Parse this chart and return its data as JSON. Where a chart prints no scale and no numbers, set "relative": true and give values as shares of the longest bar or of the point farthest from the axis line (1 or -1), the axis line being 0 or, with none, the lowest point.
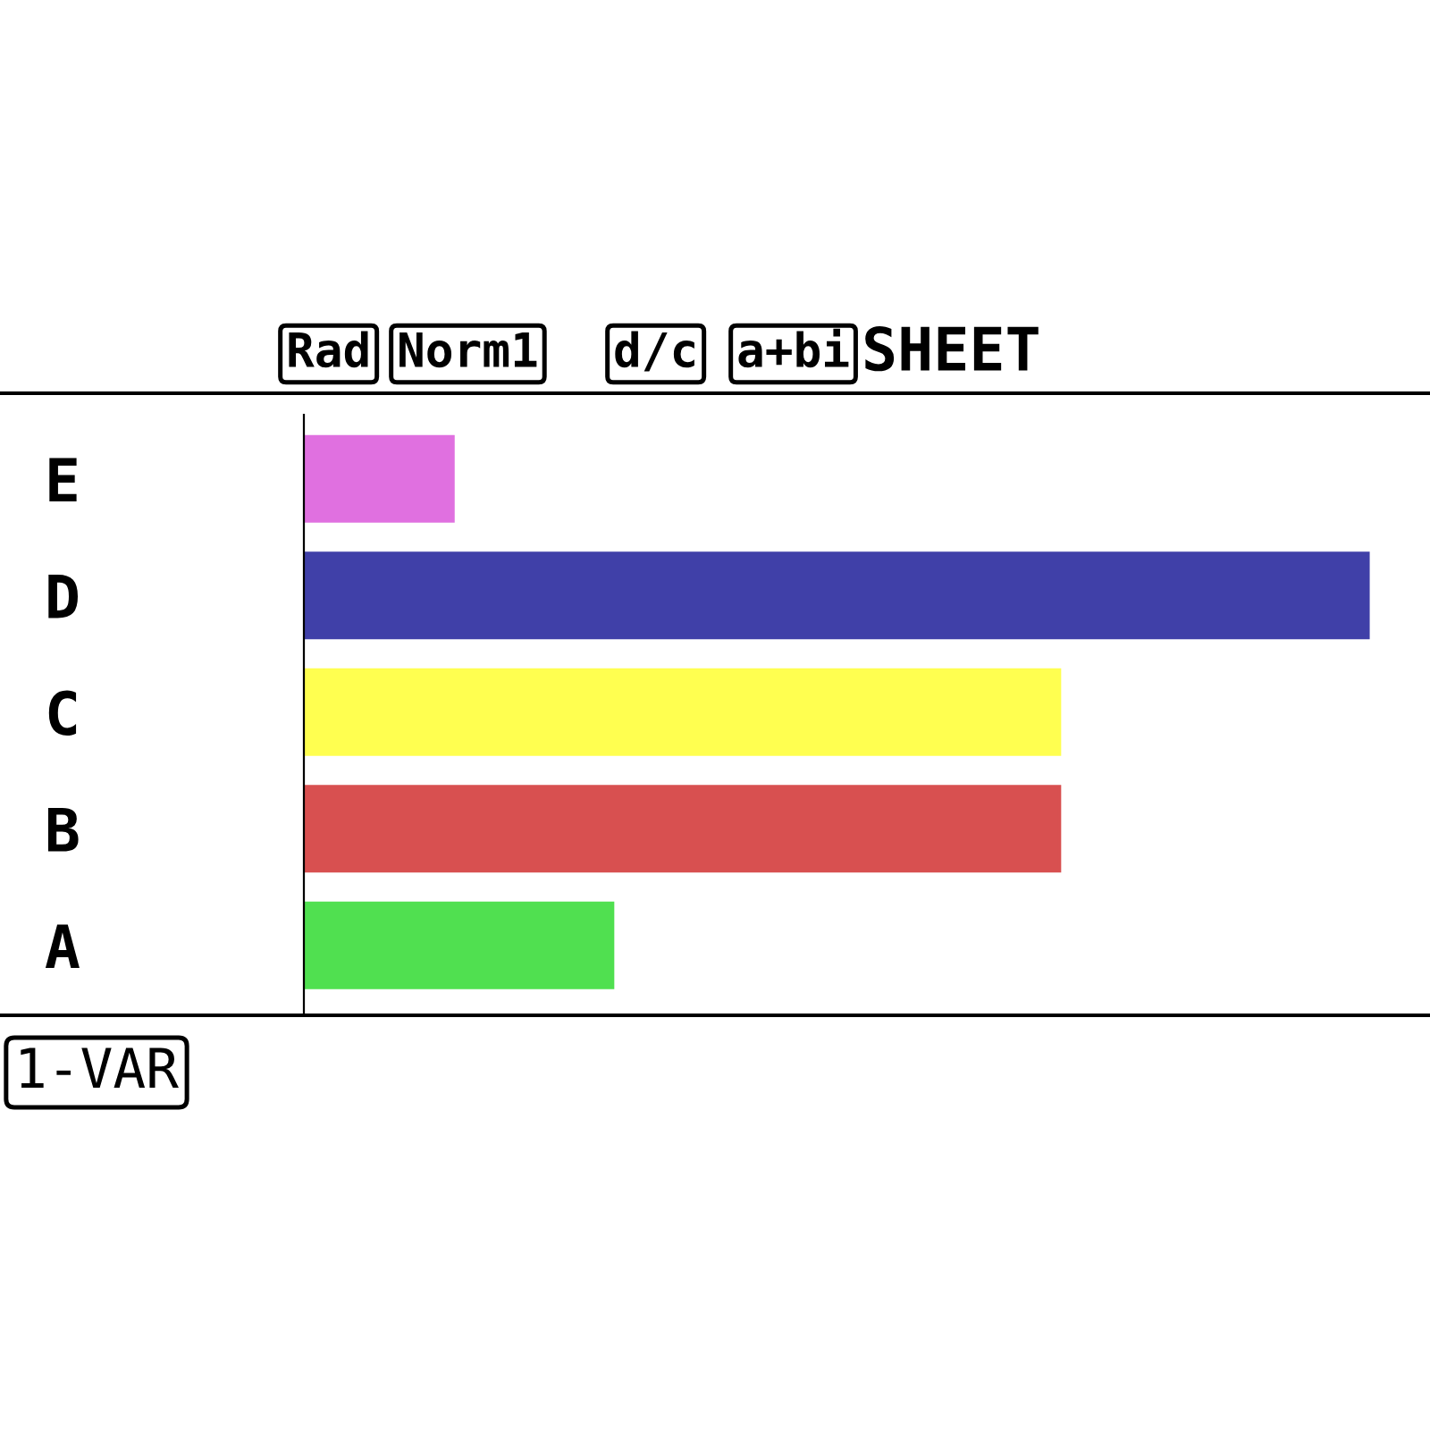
{
  "chart_data": {
    "type": "bar",
    "orientation": "horizontal",
    "relative": true,
    "categories": [
      "E",
      "D",
      "C",
      "B",
      "A"
    ],
    "values": [
      0.14,
      1,
      0.71,
      0.71,
      0.29
    ],
    "colors": [
      "#e070e0",
      "#4040a8",
      "#ffff50",
      "#d85050",
      "#50e050"
    ],
    "annotations": [
      "Rad",
      "Norm1",
      "d/c",
      "a+bi",
      "SHEET",
      "1-VAR"
    ],
    "grid": false
  }
}
